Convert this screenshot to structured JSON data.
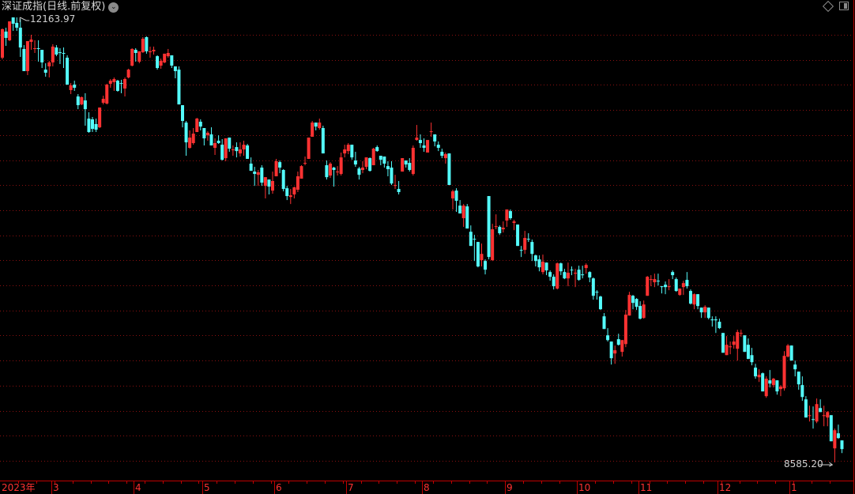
{
  "header": {
    "title": "深证成指(日线.前复权)",
    "dropdown_icon": "chevron-down-icon",
    "right_icons": [
      "diamond-icon",
      "panel-toggle-icon"
    ]
  },
  "colors": {
    "up": "#ff3232",
    "down": "#54fcfc",
    "grid": "#8a1010",
    "axis": "#c00000",
    "label": "#ff3232",
    "background": "#000000"
  },
  "annotations": {
    "max_label": "12163.97",
    "min_label": "8585.20"
  },
  "chart_data": {
    "type": "candlestick",
    "title": "深证成指(日线.前复权)",
    "ylim": [
      8585.2,
      12163.97
    ],
    "grid": true,
    "columns": [
      "open",
      "high",
      "low",
      "close"
    ],
    "x_labels": [
      {
        "label": "2023年",
        "index": 0
      },
      {
        "label": "3",
        "index": 14
      },
      {
        "label": "4",
        "index": 37
      },
      {
        "label": "5",
        "index": 56
      },
      {
        "label": "6",
        "index": 76
      },
      {
        "label": "7",
        "index": 96
      },
      {
        "label": "8",
        "index": 117
      },
      {
        "label": "9",
        "index": 140
      },
      {
        "label": "10",
        "index": 160
      },
      {
        "label": "11",
        "index": 177
      },
      {
        "label": "12",
        "index": 199
      },
      {
        "label": "1",
        "index": 219
      }
    ],
    "candles": [
      [
        11840,
        12075,
        11827,
        12069
      ],
      [
        12050,
        12081,
        11935,
        11999
      ],
      [
        11980,
        12132,
        11973,
        12132
      ],
      [
        12164,
        12150,
        12056,
        12113
      ],
      [
        12120,
        12163.97,
        12056,
        12081
      ],
      [
        12081,
        12150,
        11846,
        11922
      ],
      [
        11910,
        11941,
        11732,
        11732
      ],
      [
        11732,
        11973,
        11700,
        11973
      ],
      [
        11967,
        12024,
        11903,
        11986
      ],
      [
        11910,
        11980,
        11878,
        11916
      ],
      [
        11916,
        11980,
        11808,
        11910
      ],
      [
        11903,
        11903,
        11757,
        11802
      ],
      [
        11744,
        11795,
        11687,
        11719
      ],
      [
        11770,
        11814,
        11681,
        11802
      ],
      [
        11802,
        11948,
        11770,
        11929
      ],
      [
        11922,
        11941,
        11852,
        11865
      ],
      [
        11884,
        11916,
        11789,
        11878
      ],
      [
        11878,
        11922,
        11757,
        11872
      ],
      [
        11840,
        11859,
        11623,
        11623
      ],
      [
        11579,
        11636,
        11547,
        11617
      ],
      [
        11623,
        11655,
        11573,
        11598
      ],
      [
        11528,
        11547,
        11426,
        11458
      ],
      [
        11464,
        11528,
        11458,
        11522
      ],
      [
        11496,
        11554,
        11293,
        11426
      ],
      [
        11350,
        11401,
        11236,
        11242
      ],
      [
        11344,
        11363,
        11242,
        11267
      ],
      [
        11306,
        11350,
        11242,
        11261
      ],
      [
        11280,
        11439,
        11274,
        11439
      ],
      [
        11477,
        11534,
        11464,
        11509
      ],
      [
        11471,
        11630,
        11464,
        11623
      ],
      [
        11630,
        11668,
        11598,
        11655
      ],
      [
        11643,
        11681,
        11573,
        11668
      ],
      [
        11655,
        11662,
        11566,
        11573
      ],
      [
        11636,
        11662,
        11554,
        11630
      ],
      [
        11592,
        11681,
        11528,
        11668
      ],
      [
        11681,
        11751,
        11674,
        11744
      ],
      [
        11776,
        11916,
        11770,
        11910
      ],
      [
        11903,
        11916,
        11808,
        11878
      ],
      [
        11808,
        11891,
        11795,
        11891
      ],
      [
        11884,
        12005,
        11878,
        11992
      ],
      [
        12005,
        12011,
        11872,
        11891
      ],
      [
        11884,
        11929,
        11840,
        11891
      ],
      [
        11891,
        11929,
        11865,
        11903
      ],
      [
        11852,
        11859,
        11744,
        11757
      ],
      [
        11776,
        11833,
        11751,
        11814
      ],
      [
        11802,
        11872,
        11795,
        11872
      ],
      [
        11852,
        11910,
        11840,
        11878
      ],
      [
        11859,
        11859,
        11757,
        11776
      ],
      [
        11770,
        11770,
        11674,
        11732
      ],
      [
        11744,
        11770,
        11464,
        11464
      ],
      [
        11458,
        11458,
        11280,
        11331
      ],
      [
        11318,
        11331,
        11051,
        11159
      ],
      [
        11115,
        11255,
        11108,
        11197
      ],
      [
        11153,
        11274,
        11140,
        11229
      ],
      [
        11242,
        11356,
        11242,
        11350
      ],
      [
        11325,
        11344,
        11255,
        11286
      ],
      [
        11274,
        11274,
        11134,
        11191
      ],
      [
        11216,
        11248,
        11172,
        11236
      ],
      [
        11223,
        11280,
        11134,
        11134
      ],
      [
        11115,
        11191,
        11058,
        11153
      ],
      [
        11172,
        11216,
        11147,
        11153
      ],
      [
        11140,
        11185,
        11013,
        11019
      ],
      [
        11032,
        11191,
        11007,
        11191
      ],
      [
        11197,
        11197,
        11083,
        11108
      ],
      [
        11096,
        11134,
        11051,
        11102
      ],
      [
        11121,
        11159,
        11038,
        11089
      ],
      [
        11070,
        11159,
        11045,
        11102
      ],
      [
        11102,
        11172,
        11051,
        11140
      ],
      [
        11134,
        11147,
        11026,
        11026
      ],
      [
        10988,
        11038,
        10930,
        10930
      ],
      [
        10924,
        10962,
        10809,
        10905
      ],
      [
        10898,
        10937,
        10809,
        10918
      ],
      [
        10956,
        10975,
        10809,
        10835
      ],
      [
        10809,
        10879,
        10708,
        10879
      ],
      [
        10860,
        10860,
        10740,
        10803
      ],
      [
        10771,
        10924,
        10746,
        10848
      ],
      [
        10886,
        11026,
        10886,
        11007
      ],
      [
        11000,
        11013,
        10911,
        10956
      ],
      [
        10937,
        10943,
        10765,
        10784
      ],
      [
        10790,
        10809,
        10695,
        10727
      ],
      [
        10720,
        10784,
        10663,
        10733
      ],
      [
        10740,
        10803,
        10708,
        10797
      ],
      [
        10778,
        10924,
        10759,
        10886
      ],
      [
        10867,
        10975,
        10867,
        10968
      ],
      [
        10988,
        11045,
        10975,
        10994
      ],
      [
        11026,
        11197,
        11026,
        11197
      ],
      [
        11204,
        11331,
        11204,
        11318
      ],
      [
        11318,
        11318,
        11255,
        11286
      ],
      [
        11274,
        11350,
        11261,
        11318
      ],
      [
        11274,
        11293,
        11070,
        11070
      ],
      [
        10975,
        11013,
        10860,
        10879
      ],
      [
        10892,
        11000,
        10873,
        10988
      ],
      [
        10956,
        10962,
        10803,
        10937
      ],
      [
        10918,
        10968,
        10892,
        10924
      ],
      [
        10905,
        11077,
        10892,
        11038
      ],
      [
        11070,
        11140,
        11038,
        11102
      ],
      [
        11089,
        11153,
        11064,
        11140
      ],
      [
        11140,
        11140,
        11019,
        11038
      ],
      [
        11013,
        11083,
        10962,
        10981
      ],
      [
        10949,
        10962,
        10860,
        10898
      ],
      [
        10937,
        11007,
        10911,
        10956
      ],
      [
        10962,
        11038,
        10943,
        11038
      ],
      [
        11032,
        11038,
        10924,
        10930
      ],
      [
        10975,
        11115,
        10975,
        11108
      ],
      [
        11121,
        11134,
        11083,
        11089
      ],
      [
        11051,
        11051,
        10975,
        11019
      ],
      [
        11045,
        11045,
        10956,
        10988
      ],
      [
        10968,
        11007,
        10886,
        10943
      ],
      [
        10956,
        11007,
        10816,
        10828
      ],
      [
        10809,
        10898,
        10784,
        10816
      ],
      [
        10784,
        10848,
        10740,
        10759
      ],
      [
        10924,
        11032,
        10924,
        11032
      ],
      [
        11013,
        11013,
        10956,
        10981
      ],
      [
        10994,
        11032,
        10924,
        10937
      ],
      [
        10905,
        11134,
        10892,
        11115
      ],
      [
        11178,
        11299,
        11172,
        11197
      ],
      [
        11178,
        11223,
        11115,
        11153
      ],
      [
        11134,
        11191,
        11083,
        11115
      ],
      [
        11077,
        11178,
        11077,
        11178
      ],
      [
        11242,
        11318,
        11204,
        11248
      ],
      [
        11223,
        11223,
        11127,
        11166
      ],
      [
        11140,
        11166,
        11089,
        11115
      ],
      [
        11083,
        11108,
        11032,
        11051
      ],
      [
        11032,
        11077,
        10988,
        11064
      ],
      [
        11070,
        11070,
        10816,
        10816
      ],
      [
        10708,
        10778,
        10619,
        10765
      ],
      [
        10771,
        10790,
        10600,
        10689
      ],
      [
        10650,
        10695,
        10587,
        10587
      ],
      [
        10549,
        10663,
        10479,
        10650
      ],
      [
        10644,
        10663,
        10466,
        10466
      ],
      [
        10440,
        10491,
        10326,
        10326
      ],
      [
        10383,
        10415,
        10205,
        10377
      ],
      [
        10358,
        10358,
        10154,
        10161
      ],
      [
        10212,
        10345,
        10161,
        10262
      ],
      [
        10205,
        10218,
        10097,
        10135
      ],
      [
        10727,
        10727,
        10218,
        10237
      ],
      [
        10212,
        10504,
        10205,
        10460
      ],
      [
        10479,
        10580,
        10460,
        10485
      ],
      [
        10479,
        10491,
        10415,
        10428
      ],
      [
        10460,
        10523,
        10434,
        10472
      ],
      [
        10530,
        10619,
        10479,
        10619
      ],
      [
        10606,
        10619,
        10536,
        10549
      ],
      [
        10511,
        10536,
        10453,
        10523
      ],
      [
        10498,
        10498,
        10326,
        10326
      ],
      [
        10294,
        10326,
        10237,
        10288
      ],
      [
        10294,
        10447,
        10262,
        10390
      ],
      [
        10383,
        10428,
        10358,
        10377
      ],
      [
        10358,
        10377,
        10205,
        10262
      ],
      [
        10250,
        10256,
        10161,
        10205
      ],
      [
        10218,
        10250,
        10122,
        10154
      ],
      [
        10116,
        10256,
        10097,
        10199
      ],
      [
        10192,
        10192,
        10091,
        10129
      ],
      [
        10116,
        10129,
        10046,
        10078
      ],
      [
        10078,
        10097,
        9976,
        10002
      ],
      [
        9983,
        10192,
        9976,
        10186
      ],
      [
        10186,
        10192,
        10091,
        10122
      ],
      [
        10116,
        10142,
        10059,
        10065
      ],
      [
        10065,
        10192,
        10002,
        10110
      ],
      [
        10135,
        10161,
        10091,
        10129
      ],
      [
        10103,
        10142,
        9995,
        10110
      ],
      [
        10135,
        10167,
        10046,
        10053
      ],
      [
        10097,
        10167,
        10065,
        10091
      ],
      [
        10148,
        10186,
        10103,
        10173
      ],
      [
        10116,
        10122,
        10034,
        10072
      ],
      [
        10065,
        10072,
        9894,
        9925
      ],
      [
        9957,
        9970,
        9894,
        9951
      ],
      [
        9919,
        9925,
        9811,
        9817
      ],
      [
        9760,
        9786,
        9658,
        9658
      ],
      [
        9607,
        9665,
        9557,
        9569
      ],
      [
        9557,
        9557,
        9372,
        9423
      ],
      [
        9461,
        9525,
        9378,
        9487
      ],
      [
        9576,
        9620,
        9525,
        9531
      ],
      [
        9474,
        9569,
        9436,
        9569
      ],
      [
        9537,
        9811,
        9512,
        9773
      ],
      [
        9766,
        9957,
        9766,
        9932
      ],
      [
        9925,
        9932,
        9817,
        9868
      ],
      [
        9900,
        9906,
        9811,
        9836
      ],
      [
        9843,
        9881,
        9735,
        9741
      ],
      [
        9747,
        9887,
        9741,
        9855
      ],
      [
        9925,
        10084,
        9925,
        10078
      ],
      [
        10053,
        10091,
        10002,
        10059
      ],
      [
        10034,
        10103,
        9995,
        10059
      ],
      [
        10046,
        10103,
        10008,
        10040
      ],
      [
        10002,
        10002,
        9944,
        9995
      ],
      [
        10014,
        10040,
        9938,
        9995
      ],
      [
        9995,
        10059,
        9970,
        10002
      ],
      [
        10116,
        10129,
        10059,
        10091
      ],
      [
        10059,
        10072,
        9957,
        9964
      ],
      [
        9932,
        9983,
        9925,
        9983
      ],
      [
        9995,
        10046,
        9932,
        10027
      ],
      [
        10053,
        10116,
        9983,
        10002
      ],
      [
        9964,
        9976,
        9855,
        9862
      ],
      [
        9855,
        9944,
        9817,
        9938
      ],
      [
        9938,
        9938,
        9817,
        9843
      ],
      [
        9830,
        9830,
        9747,
        9792
      ],
      [
        9792,
        9849,
        9747,
        9836
      ],
      [
        9830,
        9830,
        9735,
        9747
      ],
      [
        9735,
        9760,
        9677,
        9728
      ],
      [
        9735,
        9760,
        9626,
        9728
      ],
      [
        9716,
        9741,
        9658,
        9665
      ],
      [
        9626,
        9626,
        9467,
        9467
      ],
      [
        9448,
        9601,
        9448,
        9531
      ],
      [
        9512,
        9557,
        9455,
        9518
      ],
      [
        9531,
        9601,
        9499,
        9557
      ],
      [
        9499,
        9652,
        9404,
        9633
      ],
      [
        9620,
        9652,
        9595,
        9626
      ],
      [
        9607,
        9607,
        9474,
        9474
      ],
      [
        9531,
        9582,
        9417,
        9417
      ],
      [
        9448,
        9506,
        9366,
        9391
      ],
      [
        9347,
        9378,
        9258,
        9277
      ],
      [
        9270,
        9334,
        9232,
        9289
      ],
      [
        9302,
        9308,
        9156,
        9156
      ],
      [
        9118,
        9277,
        9105,
        9258
      ],
      [
        9245,
        9328,
        9188,
        9219
      ],
      [
        9207,
        9264,
        9188,
        9258
      ],
      [
        9245,
        9245,
        9130,
        9156
      ],
      [
        9175,
        9207,
        9118,
        9194
      ],
      [
        9181,
        9480,
        9162,
        9442
      ],
      [
        9436,
        9537,
        9429,
        9525
      ],
      [
        9525,
        9525,
        9404,
        9404
      ],
      [
        9372,
        9404,
        9277,
        9334
      ],
      [
        9315,
        9315,
        9169,
        9213
      ],
      [
        9207,
        9277,
        9080,
        9111
      ],
      [
        9092,
        9118,
        8946,
        8946
      ],
      [
        8958,
        9041,
        8914,
        8965
      ],
      [
        8933,
        9035,
        8857,
        8927
      ],
      [
        8914,
        9099,
        8901,
        9054
      ],
      [
        9022,
        9092,
        8990,
        8990
      ],
      [
        8958,
        9041,
        8876,
        8965
      ],
      [
        8946,
        8997,
        8876,
        8990
      ],
      [
        8965,
        8965,
        8755,
        8755
      ],
      [
        8698,
        8857,
        8585.2,
        8844
      ],
      [
        8819,
        8889,
        8774,
        8781
      ],
      [
        8762,
        8762,
        8660,
        8692
      ]
    ]
  }
}
